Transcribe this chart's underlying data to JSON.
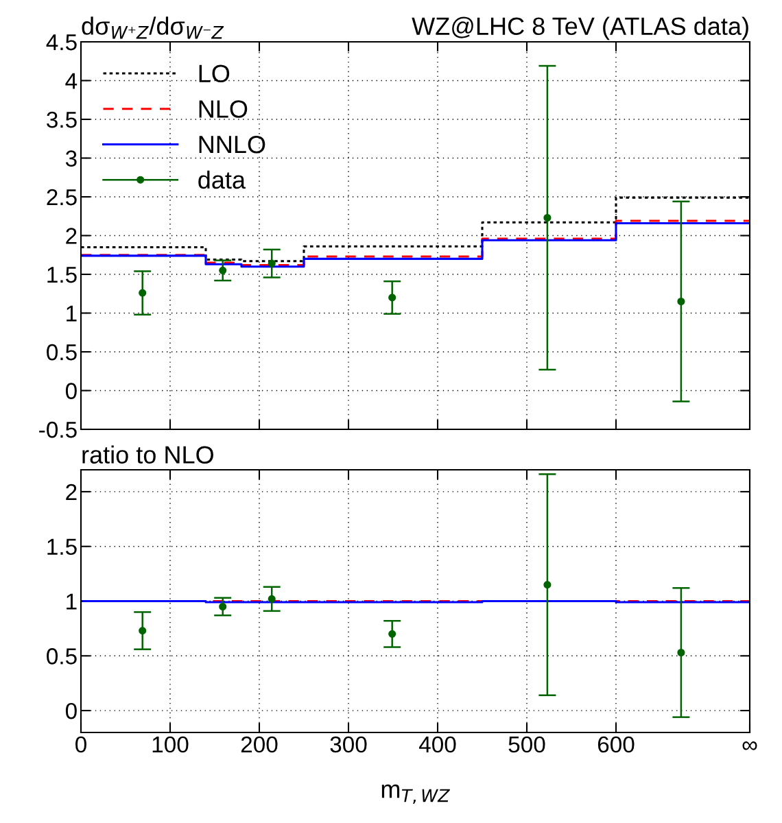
{
  "chart_data": [
    {
      "type": "step",
      "title": "WZ@LHC 8 TeV (ATLAS data)",
      "ylabel": "dσ$_{W⁺Z}$/dσ$_{W⁻Z}$",
      "xlim": [
        0,
        750
      ],
      "xticks": [
        0,
        100,
        200,
        300,
        400,
        500,
        600,
        {
          "value": 750,
          "label": null
        }
      ],
      "ylim": [
        -0.5,
        4.5
      ],
      "yticks": [
        -0.5,
        0,
        0.5,
        1,
        1.5,
        2,
        2.5,
        3,
        3.5,
        4,
        4.5
      ],
      "grid": true,
      "legend": "top left",
      "tick_labels": "y",
      "series": [
        {
          "name": "LO",
          "color": "#000000",
          "line_style": "dotted",
          "x": [
            0,
            140,
            180,
            250,
            450,
            600,
            750
          ],
          "values": [
            1.85,
            1.69,
            1.67,
            1.86,
            2.17,
            2.49,
            2.49
          ]
        },
        {
          "name": "NLO",
          "color": "#ff0000",
          "line_style": "dashed",
          "x": [
            0,
            140,
            180,
            250,
            450,
            600,
            750
          ],
          "values": [
            1.75,
            1.65,
            1.62,
            1.73,
            1.96,
            2.19,
            2.19
          ]
        },
        {
          "name": "NNLO",
          "color": "#0000ff",
          "line_style": "solid",
          "x": [
            0,
            140,
            180,
            250,
            450,
            600,
            750
          ],
          "values": [
            1.74,
            1.63,
            1.6,
            1.7,
            1.94,
            2.16,
            2.16
          ]
        },
        {
          "name": "data",
          "type": "scatter",
          "color": "#006400",
          "marker": "circle",
          "x": [
            69,
            159,
            214,
            349,
            523,
            673
          ],
          "values": [
            1.26,
            1.55,
            1.64,
            1.2,
            2.23,
            1.15
          ],
          "errors": [
            0.28,
            0.13,
            0.18,
            0.21,
            1.96,
            1.29
          ]
        }
      ]
    },
    {
      "type": "step",
      "ylabel": "ratio to NLO",
      "xlabel": "m$_{T,WZ}$",
      "xlim": [
        0,
        750
      ],
      "xticks": [
        0,
        100,
        200,
        300,
        400,
        500,
        600,
        {
          "value": 750,
          "label": "∞"
        }
      ],
      "ylim": [
        -0.2,
        2.2
      ],
      "yticks": [
        0,
        0.5,
        1,
        1.5,
        2
      ],
      "grid": true,
      "series": [
        {
          "color": "#ff0000",
          "line_style": "dashed",
          "x": [
            0,
            140,
            180,
            250,
            450,
            600,
            750
          ],
          "values": [
            1,
            1,
            1,
            1,
            1,
            1,
            1
          ]
        },
        {
          "color": "#0000ff",
          "line_style": "solid",
          "x": [
            0,
            140,
            180,
            250,
            450,
            600,
            750
          ],
          "values": [
            1.0,
            0.99,
            0.99,
            0.99,
            1.0,
            0.99,
            0.99
          ]
        },
        {
          "type": "scatter",
          "color": "#006400",
          "marker": "circle",
          "x": [
            69,
            159,
            214,
            349,
            523,
            673
          ],
          "values": [
            0.73,
            0.95,
            1.02,
            0.7,
            1.15,
            0.53
          ],
          "errors": [
            0.17,
            0.08,
            0.11,
            0.12,
            1.01,
            0.59
          ]
        }
      ]
    }
  ]
}
